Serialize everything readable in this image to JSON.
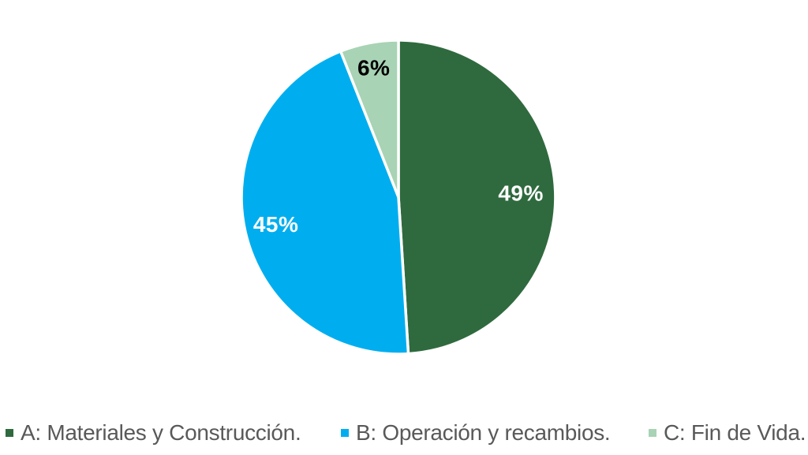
{
  "chart_data": {
    "type": "pie",
    "unit": "%",
    "categories": [
      "A: Materiales y Construcción.",
      "B: Operación y recambios.",
      "C: Fin de Vida."
    ],
    "values": [
      49,
      45,
      6
    ],
    "labels": [
      "49%",
      "45%",
      "6%"
    ],
    "colors": [
      "#2F6A3E",
      "#00AEEF",
      "#A8D3B4"
    ],
    "label_colors": [
      "#FFFFFF",
      "#FFFFFF",
      "#000000"
    ],
    "slice_border_color": "#FFFFFF",
    "background_color": "#FFFFFF",
    "legend_position": "bottom",
    "legend_text_color": "#595959",
    "start_angle_deg": 0,
    "direction": "clockwise"
  }
}
